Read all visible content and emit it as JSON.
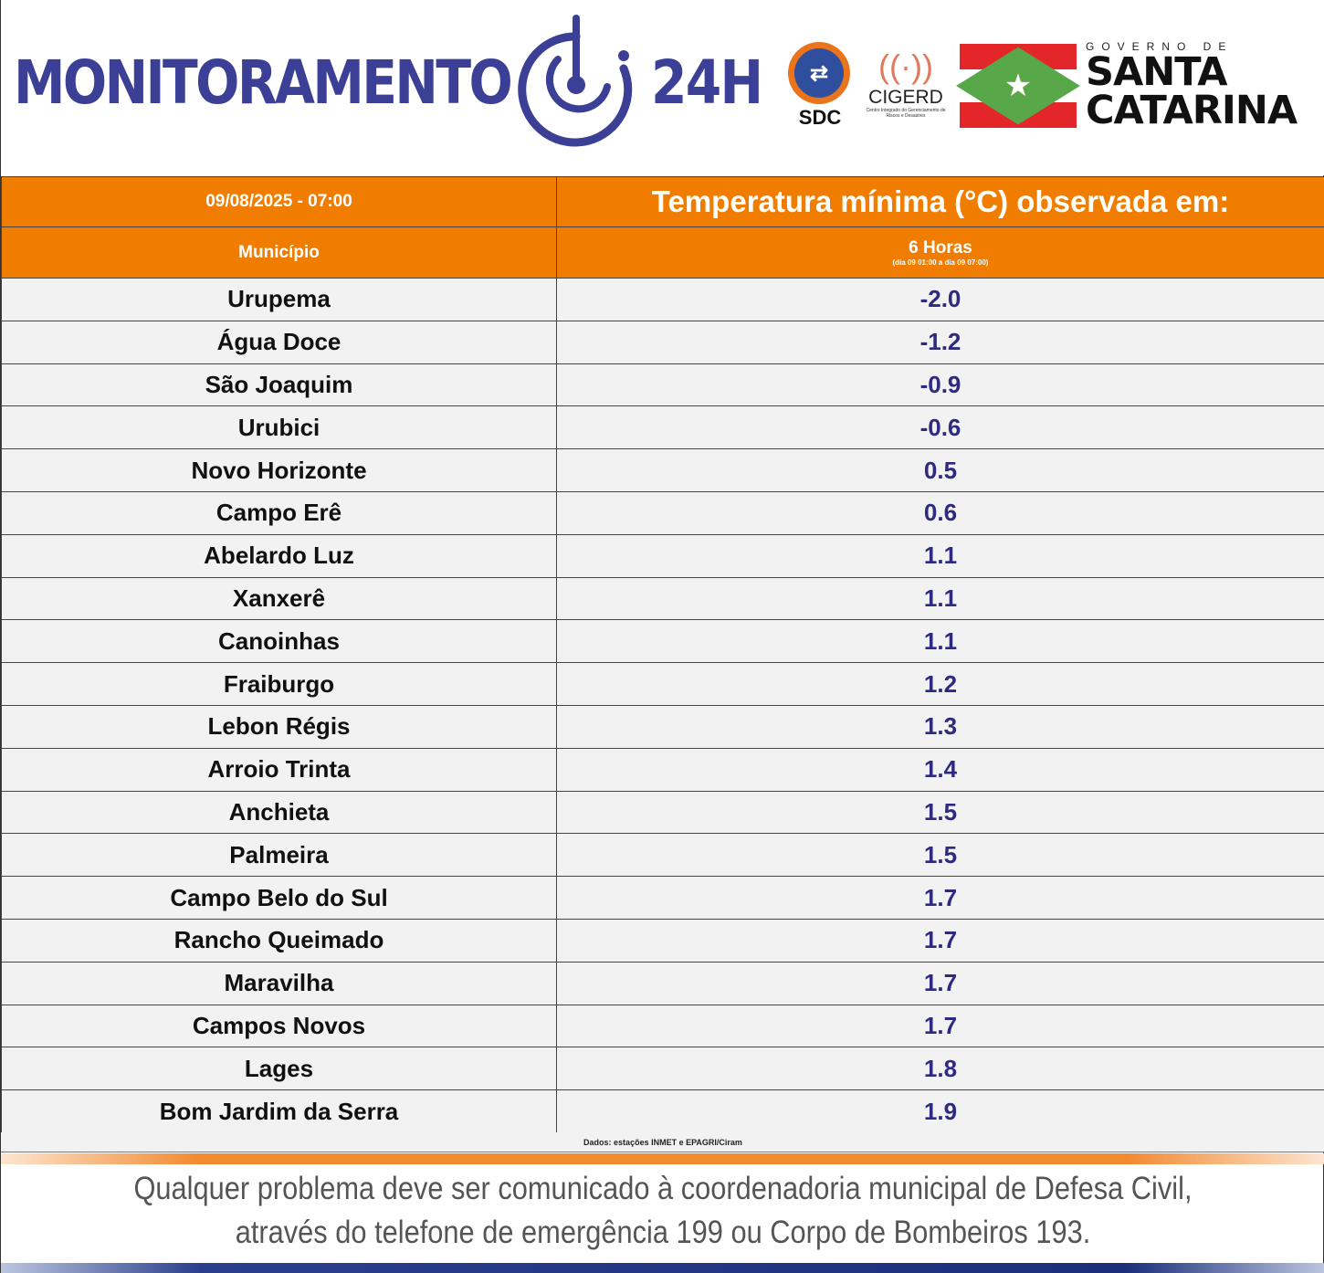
{
  "header": {
    "brand": "MONITORAMENTO",
    "brand_suffix": "24H",
    "logos": {
      "sdc": "SDC",
      "cigerd": "CIGERD",
      "cigerd_sub": "Centro Integrado do Gerenciamento de Riscos e Desastres",
      "gov_small": "GOVERNO DE",
      "gov_line1": "SANTA",
      "gov_line2": "CATARINA"
    }
  },
  "table": {
    "datetime": "09/08/2025 - 07:00",
    "title": "Temperatura mínima (°C) observada em:",
    "col_municipio": "Município",
    "col_period": "6 Horas",
    "col_period_sub": "(dia 09 01:00 a dia 09 07:00)",
    "rows": [
      {
        "name": "Urupema",
        "value": "-2.0"
      },
      {
        "name": "Água Doce",
        "value": "-1.2"
      },
      {
        "name": "São Joaquim",
        "value": "-0.9"
      },
      {
        "name": "Urubici",
        "value": "-0.6"
      },
      {
        "name": "Novo Horizonte",
        "value": "0.5"
      },
      {
        "name": "Campo Erê",
        "value": "0.6"
      },
      {
        "name": "Abelardo Luz",
        "value": "1.1"
      },
      {
        "name": "Xanxerê",
        "value": "1.1"
      },
      {
        "name": "Canoinhas",
        "value": "1.1"
      },
      {
        "name": "Fraiburgo",
        "value": "1.2"
      },
      {
        "name": "Lebon Régis",
        "value": "1.3"
      },
      {
        "name": "Arroio Trinta",
        "value": "1.4"
      },
      {
        "name": "Anchieta",
        "value": "1.5"
      },
      {
        "name": "Palmeira",
        "value": "1.5"
      },
      {
        "name": "Campo Belo do Sul",
        "value": "1.7"
      },
      {
        "name": "Rancho Queimado",
        "value": "1.7"
      },
      {
        "name": "Maravilha",
        "value": "1.7"
      },
      {
        "name": "Campos Novos",
        "value": "1.7"
      },
      {
        "name": "Lages",
        "value": "1.8"
      },
      {
        "name": "Bom Jardim da Serra",
        "value": "1.9"
      }
    ],
    "source": "Dados: estações INMET e EPAGRI/Ciram"
  },
  "footer": {
    "line1": "Qualquer problema deve ser comunicado à coordenadoria municipal de Defesa Civil,",
    "line2": "através do telefone de emergência 199 ou Corpo de Bombeiros 193."
  },
  "colors": {
    "orange": "#f07d00",
    "brand_blue": "#3b3f96",
    "value": "#2d2a80"
  }
}
